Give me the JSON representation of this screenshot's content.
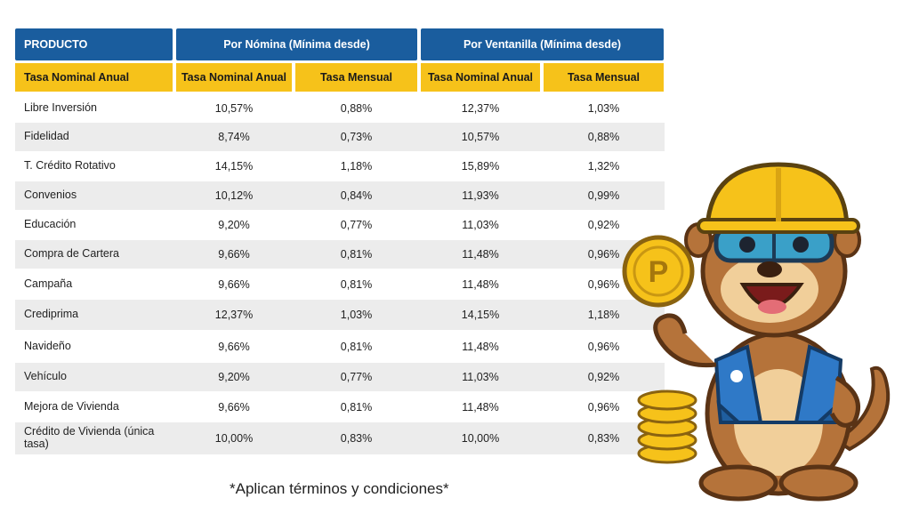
{
  "header": {
    "product_label": "PRODUCTO",
    "nomina_label": "Por Nómina (Mínima desde)",
    "ventanilla_label": "Por Ventanilla (Mínima desde)",
    "sub_first": "Tasa Nominal Anual",
    "sub_nomina_anual": "Tasa Nominal Anual",
    "sub_nomina_mensual": "Tasa Mensual",
    "sub_ventanilla_anual": "Tasa Nominal Anual",
    "sub_ventanilla_mensual": "Tasa Mensual"
  },
  "rows": [
    {
      "product": "Libre Inversión",
      "nom_anual": "10,57%",
      "nom_mensual": "0,88%",
      "ven_anual": "12,37%",
      "ven_mensual": "1,03%"
    },
    {
      "product": "Fidelidad",
      "nom_anual": "8,74%",
      "nom_mensual": "0,73%",
      "ven_anual": "10,57%",
      "ven_mensual": "0,88%"
    },
    {
      "product": "T. Crédito Rotativo",
      "nom_anual": "14,15%",
      "nom_mensual": "1,18%",
      "ven_anual": "15,89%",
      "ven_mensual": "1,32%"
    },
    {
      "product": "Convenios",
      "nom_anual": "10,12%",
      "nom_mensual": "0,84%",
      "ven_anual": "11,93%",
      "ven_mensual": "0,99%"
    },
    {
      "product": "Educación",
      "nom_anual": "9,20%",
      "nom_mensual": "0,77%",
      "ven_anual": "11,03%",
      "ven_mensual": "0,92%"
    },
    {
      "product": "Compra de Cartera",
      "nom_anual": "9,66%",
      "nom_mensual": "0,81%",
      "ven_anual": "11,48%",
      "ven_mensual": "0,96%"
    },
    {
      "product": "Campaña",
      "nom_anual": "9,66%",
      "nom_mensual": "0,81%",
      "ven_anual": "11,48%",
      "ven_mensual": "0,96%"
    },
    {
      "product": "Crediprima",
      "nom_anual": "12,37%",
      "nom_mensual": "1,03%",
      "ven_anual": "14,15%",
      "ven_mensual": "1,18%"
    },
    {
      "product": "Navideño",
      "nom_anual": "9,66%",
      "nom_mensual": "0,81%",
      "ven_anual": "11,48%",
      "ven_mensual": "0,96%"
    },
    {
      "product": "Vehículo",
      "nom_anual": "9,20%",
      "nom_mensual": "0,77%",
      "ven_anual": "11,03%",
      "ven_mensual": "0,92%"
    },
    {
      "product": "Mejora de Vivienda",
      "nom_anual": "9,66%",
      "nom_mensual": "0,81%",
      "ven_anual": "11,48%",
      "ven_mensual": "0,96%"
    },
    {
      "product": "Crédito de Vivienda (única tasa)",
      "nom_anual": "10,00%",
      "nom_mensual": "0,83%",
      "ven_anual": "10,00%",
      "ven_mensual": "0,83%"
    }
  ],
  "footnote": "*Aplican términos y condiciones*",
  "colors": {
    "header_blue": "#1a5d9e",
    "header_yellow": "#f6c21a",
    "row_shade": "#ececec"
  },
  "mascot": {
    "description_icon": "otter-mascot-with-hardhat-and-coins-icon"
  }
}
